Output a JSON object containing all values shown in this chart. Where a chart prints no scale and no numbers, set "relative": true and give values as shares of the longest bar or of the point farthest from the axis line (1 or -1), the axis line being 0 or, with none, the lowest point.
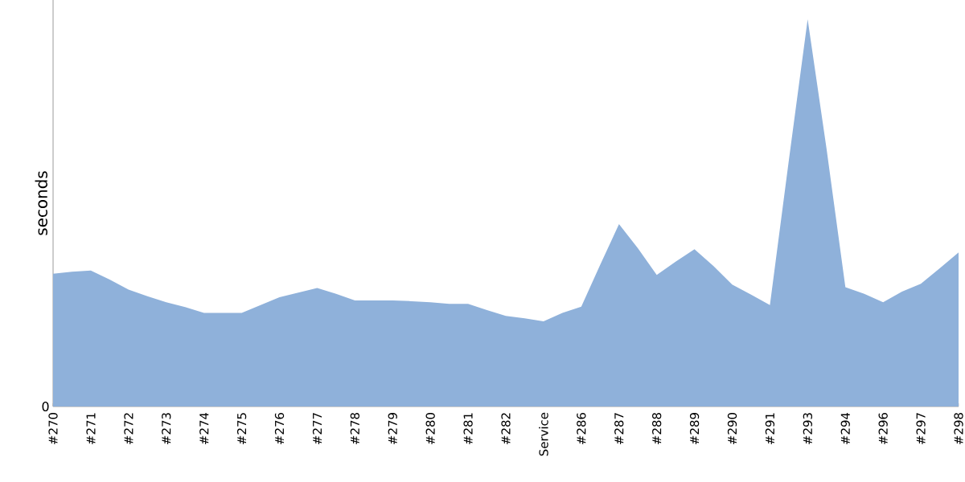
{
  "chart_data": {
    "type": "area",
    "ylabel": "seconds",
    "relative": true,
    "annotations": [
      {
        "text": "0",
        "y": 0
      }
    ],
    "categories": [
      "#270",
      null,
      "#271",
      null,
      "#272",
      null,
      "#273",
      null,
      "#274",
      null,
      "#275",
      null,
      "#276",
      null,
      "#277",
      null,
      "#278",
      null,
      "#279",
      null,
      "#280",
      null,
      "#281",
      null,
      "#282",
      null,
      "Service",
      null,
      "#286",
      null,
      "#287",
      null,
      "#288",
      null,
      "#289",
      null,
      "#290",
      null,
      "#291",
      null,
      "#293",
      null,
      "#294",
      null,
      "#296",
      null,
      "#297",
      null,
      "#298"
    ],
    "series": [
      {
        "color": "#8fb1da",
        "values": [
          0.343,
          0.348,
          0.351,
          0.328,
          0.302,
          0.285,
          0.269,
          0.257,
          0.242,
          0.242,
          0.242,
          0.262,
          0.282,
          0.294,
          0.306,
          0.291,
          0.274,
          0.274,
          0.274,
          0.272,
          0.269,
          0.265,
          0.265,
          0.249,
          0.234,
          0.228,
          0.22,
          0.242,
          0.258,
          0.366,
          0.471,
          0.409,
          0.34,
          0.374,
          0.406,
          0.363,
          0.315,
          0.289,
          0.262,
          0.635,
          1,
          0.666,
          0.308,
          0.291,
          0.269,
          0.297,
          0.317,
          0.357,
          0.398
        ]
      }
    ]
  }
}
